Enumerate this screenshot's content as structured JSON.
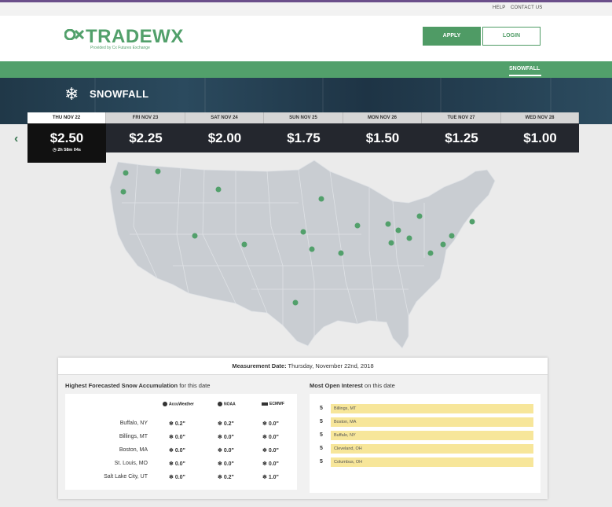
{
  "util": {
    "help": "HELP",
    "contact": "CONTACT US"
  },
  "header": {
    "logo_text": "TRADEWX",
    "logo_sub": "Provided by Cx Futures Exchange",
    "apply": "APPLY",
    "login": "LOGIN"
  },
  "nav": {
    "active": "SNOWFALL"
  },
  "banner": {
    "icon": "snowflake-icon",
    "title": "SNOWFALL"
  },
  "days": [
    {
      "label": "THU NOV 22",
      "price": "$2.50",
      "timer": "2h 58m 04s",
      "active": true
    },
    {
      "label": "FRI NOV 23",
      "price": "$2.25"
    },
    {
      "label": "SAT NOV 24",
      "price": "$2.00"
    },
    {
      "label": "SUN NOV 25",
      "price": "$1.75"
    },
    {
      "label": "MON NOV 26",
      "price": "$1.50"
    },
    {
      "label": "TUE NOV 27",
      "price": "$1.25"
    },
    {
      "label": "WED NOV 28",
      "price": "$1.00"
    }
  ],
  "panel": {
    "measurement_label": "Measurement Date:",
    "measurement_date": "Thursday, November 22nd, 2018",
    "forecast_title": "Highest Forecasted Snow Accumulation",
    "forecast_suffix": "for this date",
    "sources": [
      "AccuWeather",
      "NOAA",
      "ECMWF"
    ],
    "forecasts": [
      {
        "city": "Buffalo, NY",
        "v": [
          "0.2\"",
          "0.2\"",
          "0.0\""
        ]
      },
      {
        "city": "Billings, MT",
        "v": [
          "0.0\"",
          "0.0\"",
          "0.0\""
        ]
      },
      {
        "city": "Boston, MA",
        "v": [
          "0.0\"",
          "0.0\"",
          "0.0\""
        ]
      },
      {
        "city": "St. Louis, MO",
        "v": [
          "0.0\"",
          "0.0\"",
          "0.0\""
        ]
      },
      {
        "city": "Salt Lake City, UT",
        "v": [
          "0.0\"",
          "0.2\"",
          "1.0\""
        ]
      }
    ],
    "interest_title": "Most Open Interest",
    "interest_suffix": "on this date",
    "interest": [
      {
        "n": "5",
        "city": "Billings, MT"
      },
      {
        "n": "5",
        "city": "Boston, MA"
      },
      {
        "n": "5",
        "city": "Buffalo, NY"
      },
      {
        "n": "5",
        "city": "Cleveland, OH"
      },
      {
        "n": "5",
        "city": "Columbus, OH"
      }
    ]
  },
  "colors": {
    "brand_green": "#52a06b",
    "dark": "#24272e",
    "highlight": "#f7e69a"
  }
}
